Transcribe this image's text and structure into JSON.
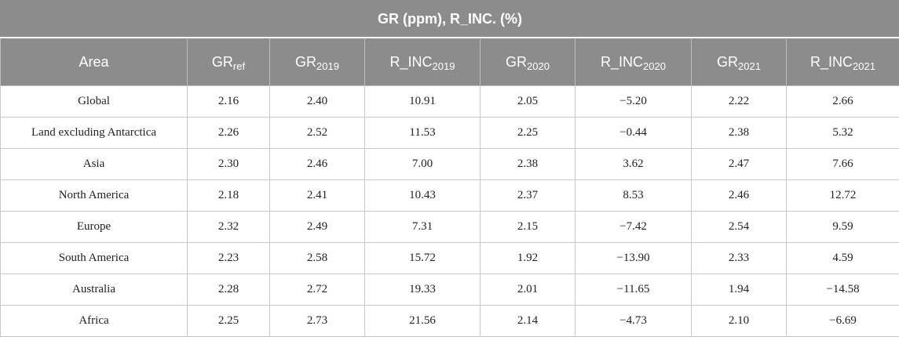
{
  "title": {
    "bold1": "GR",
    "text1": " (ppm), ",
    "bold2": "R_INC.",
    "text2": " (%)"
  },
  "columns": [
    {
      "base": "Area",
      "sub": ""
    },
    {
      "base": "GR",
      "sub": "ref"
    },
    {
      "base": "GR",
      "sub": "2019"
    },
    {
      "base": "R_INC",
      "sub": "2019"
    },
    {
      "base": "GR",
      "sub": "2020"
    },
    {
      "base": "R_INC",
      "sub": "2020"
    },
    {
      "base": "GR",
      "sub": "2021"
    },
    {
      "base": "R_INC",
      "sub": "2021"
    }
  ],
  "rows": [
    [
      "Global",
      "2.16",
      "2.40",
      "10.91",
      "2.05",
      "−5.20",
      "2.22",
      "2.66"
    ],
    [
      "Land excluding Antarctica",
      "2.26",
      "2.52",
      "11.53",
      "2.25",
      "−0.44",
      "2.38",
      "5.32"
    ],
    [
      "Asia",
      "2.30",
      "2.46",
      "7.00",
      "2.38",
      "3.62",
      "2.47",
      "7.66"
    ],
    [
      "North America",
      "2.18",
      "2.41",
      "10.43",
      "2.37",
      "8.53",
      "2.46",
      "12.72"
    ],
    [
      "Europe",
      "2.32",
      "2.49",
      "7.31",
      "2.15",
      "−7.42",
      "2.54",
      "9.59"
    ],
    [
      "South America",
      "2.23",
      "2.58",
      "15.72",
      "1.92",
      "−13.90",
      "2.33",
      "4.59"
    ],
    [
      "Australia",
      "2.28",
      "2.72",
      "19.33",
      "2.01",
      "−11.65",
      "1.94",
      "−14.58"
    ],
    [
      "Africa",
      "2.25",
      "2.73",
      "21.56",
      "2.14",
      "−4.73",
      "2.10",
      "−6.69"
    ]
  ]
}
